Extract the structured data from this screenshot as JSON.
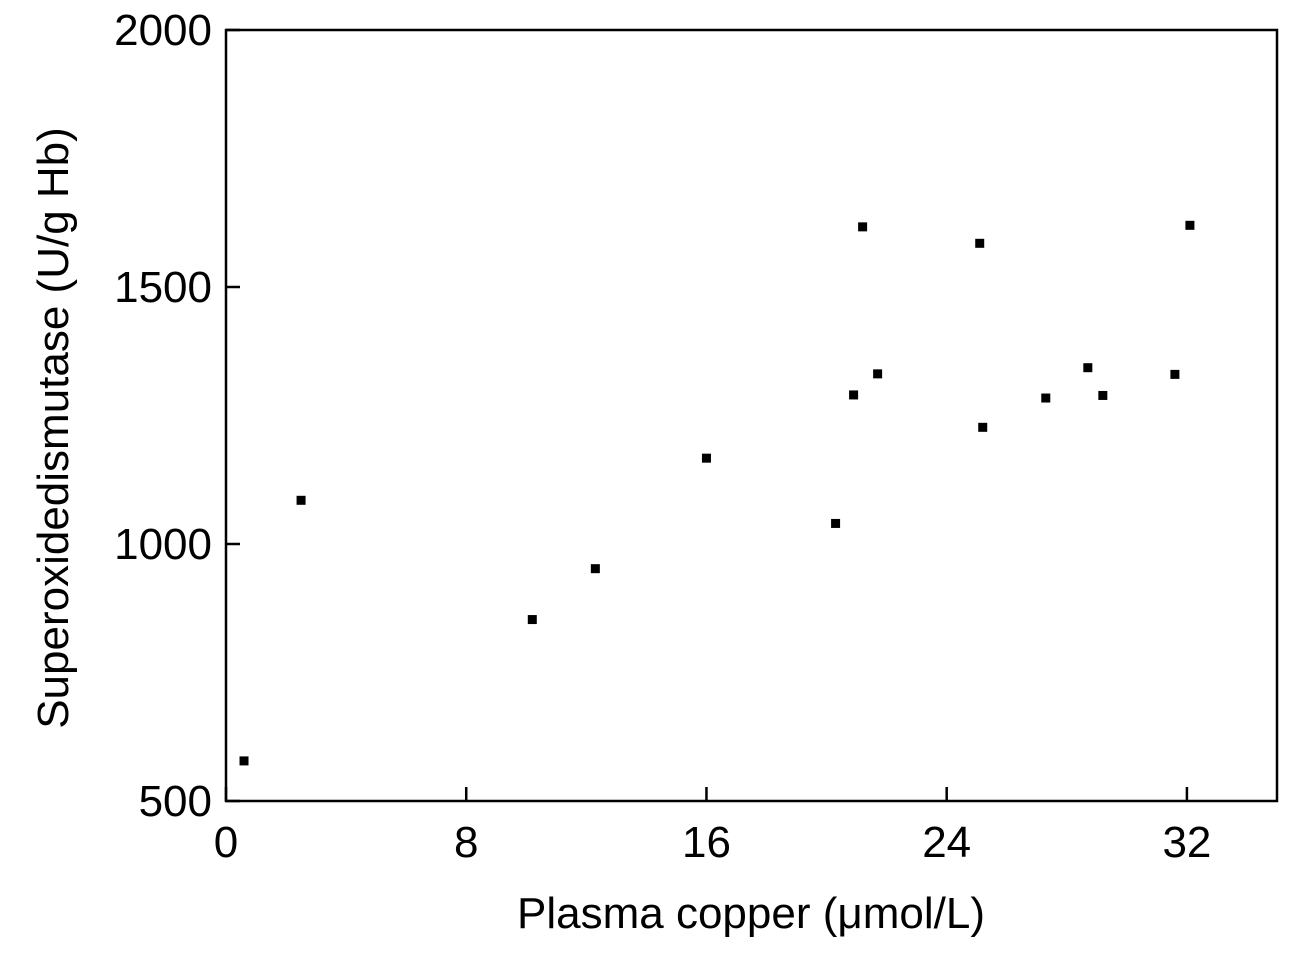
{
  "chart_data": {
    "type": "scatter",
    "title": "",
    "xlabel": "Plasma copper (μmol/L)",
    "ylabel": "Superoxidedismutase (U/g Hb)",
    "xlim": [
      0,
      35
    ],
    "ylim": [
      500,
      2000
    ],
    "x_ticks": [
      0,
      8,
      16,
      24,
      32
    ],
    "y_ticks": [
      500,
      1000,
      1500,
      2000
    ],
    "x_tick_labels": [
      "0",
      "8",
      "16",
      "24",
      "32"
    ],
    "y_tick_labels": [
      "500",
      "1000",
      "1500",
      "2000"
    ],
    "grid": false,
    "legend": "none",
    "marker_color": "#000000",
    "series": [
      {
        "points": [
          {
            "x": 0.6,
            "y": 578
          },
          {
            "x": 2.5,
            "y": 1085
          },
          {
            "x": 10.2,
            "y": 853
          },
          {
            "x": 12.3,
            "y": 952
          },
          {
            "x": 16.0,
            "y": 1167
          },
          {
            "x": 20.3,
            "y": 1040
          },
          {
            "x": 20.9,
            "y": 1290
          },
          {
            "x": 21.2,
            "y": 1617
          },
          {
            "x": 21.7,
            "y": 1331
          },
          {
            "x": 25.1,
            "y": 1585
          },
          {
            "x": 25.2,
            "y": 1227
          },
          {
            "x": 27.3,
            "y": 1284
          },
          {
            "x": 28.7,
            "y": 1343
          },
          {
            "x": 29.2,
            "y": 1289
          },
          {
            "x": 31.6,
            "y": 1330
          },
          {
            "x": 32.1,
            "y": 1620
          }
        ]
      }
    ]
  }
}
